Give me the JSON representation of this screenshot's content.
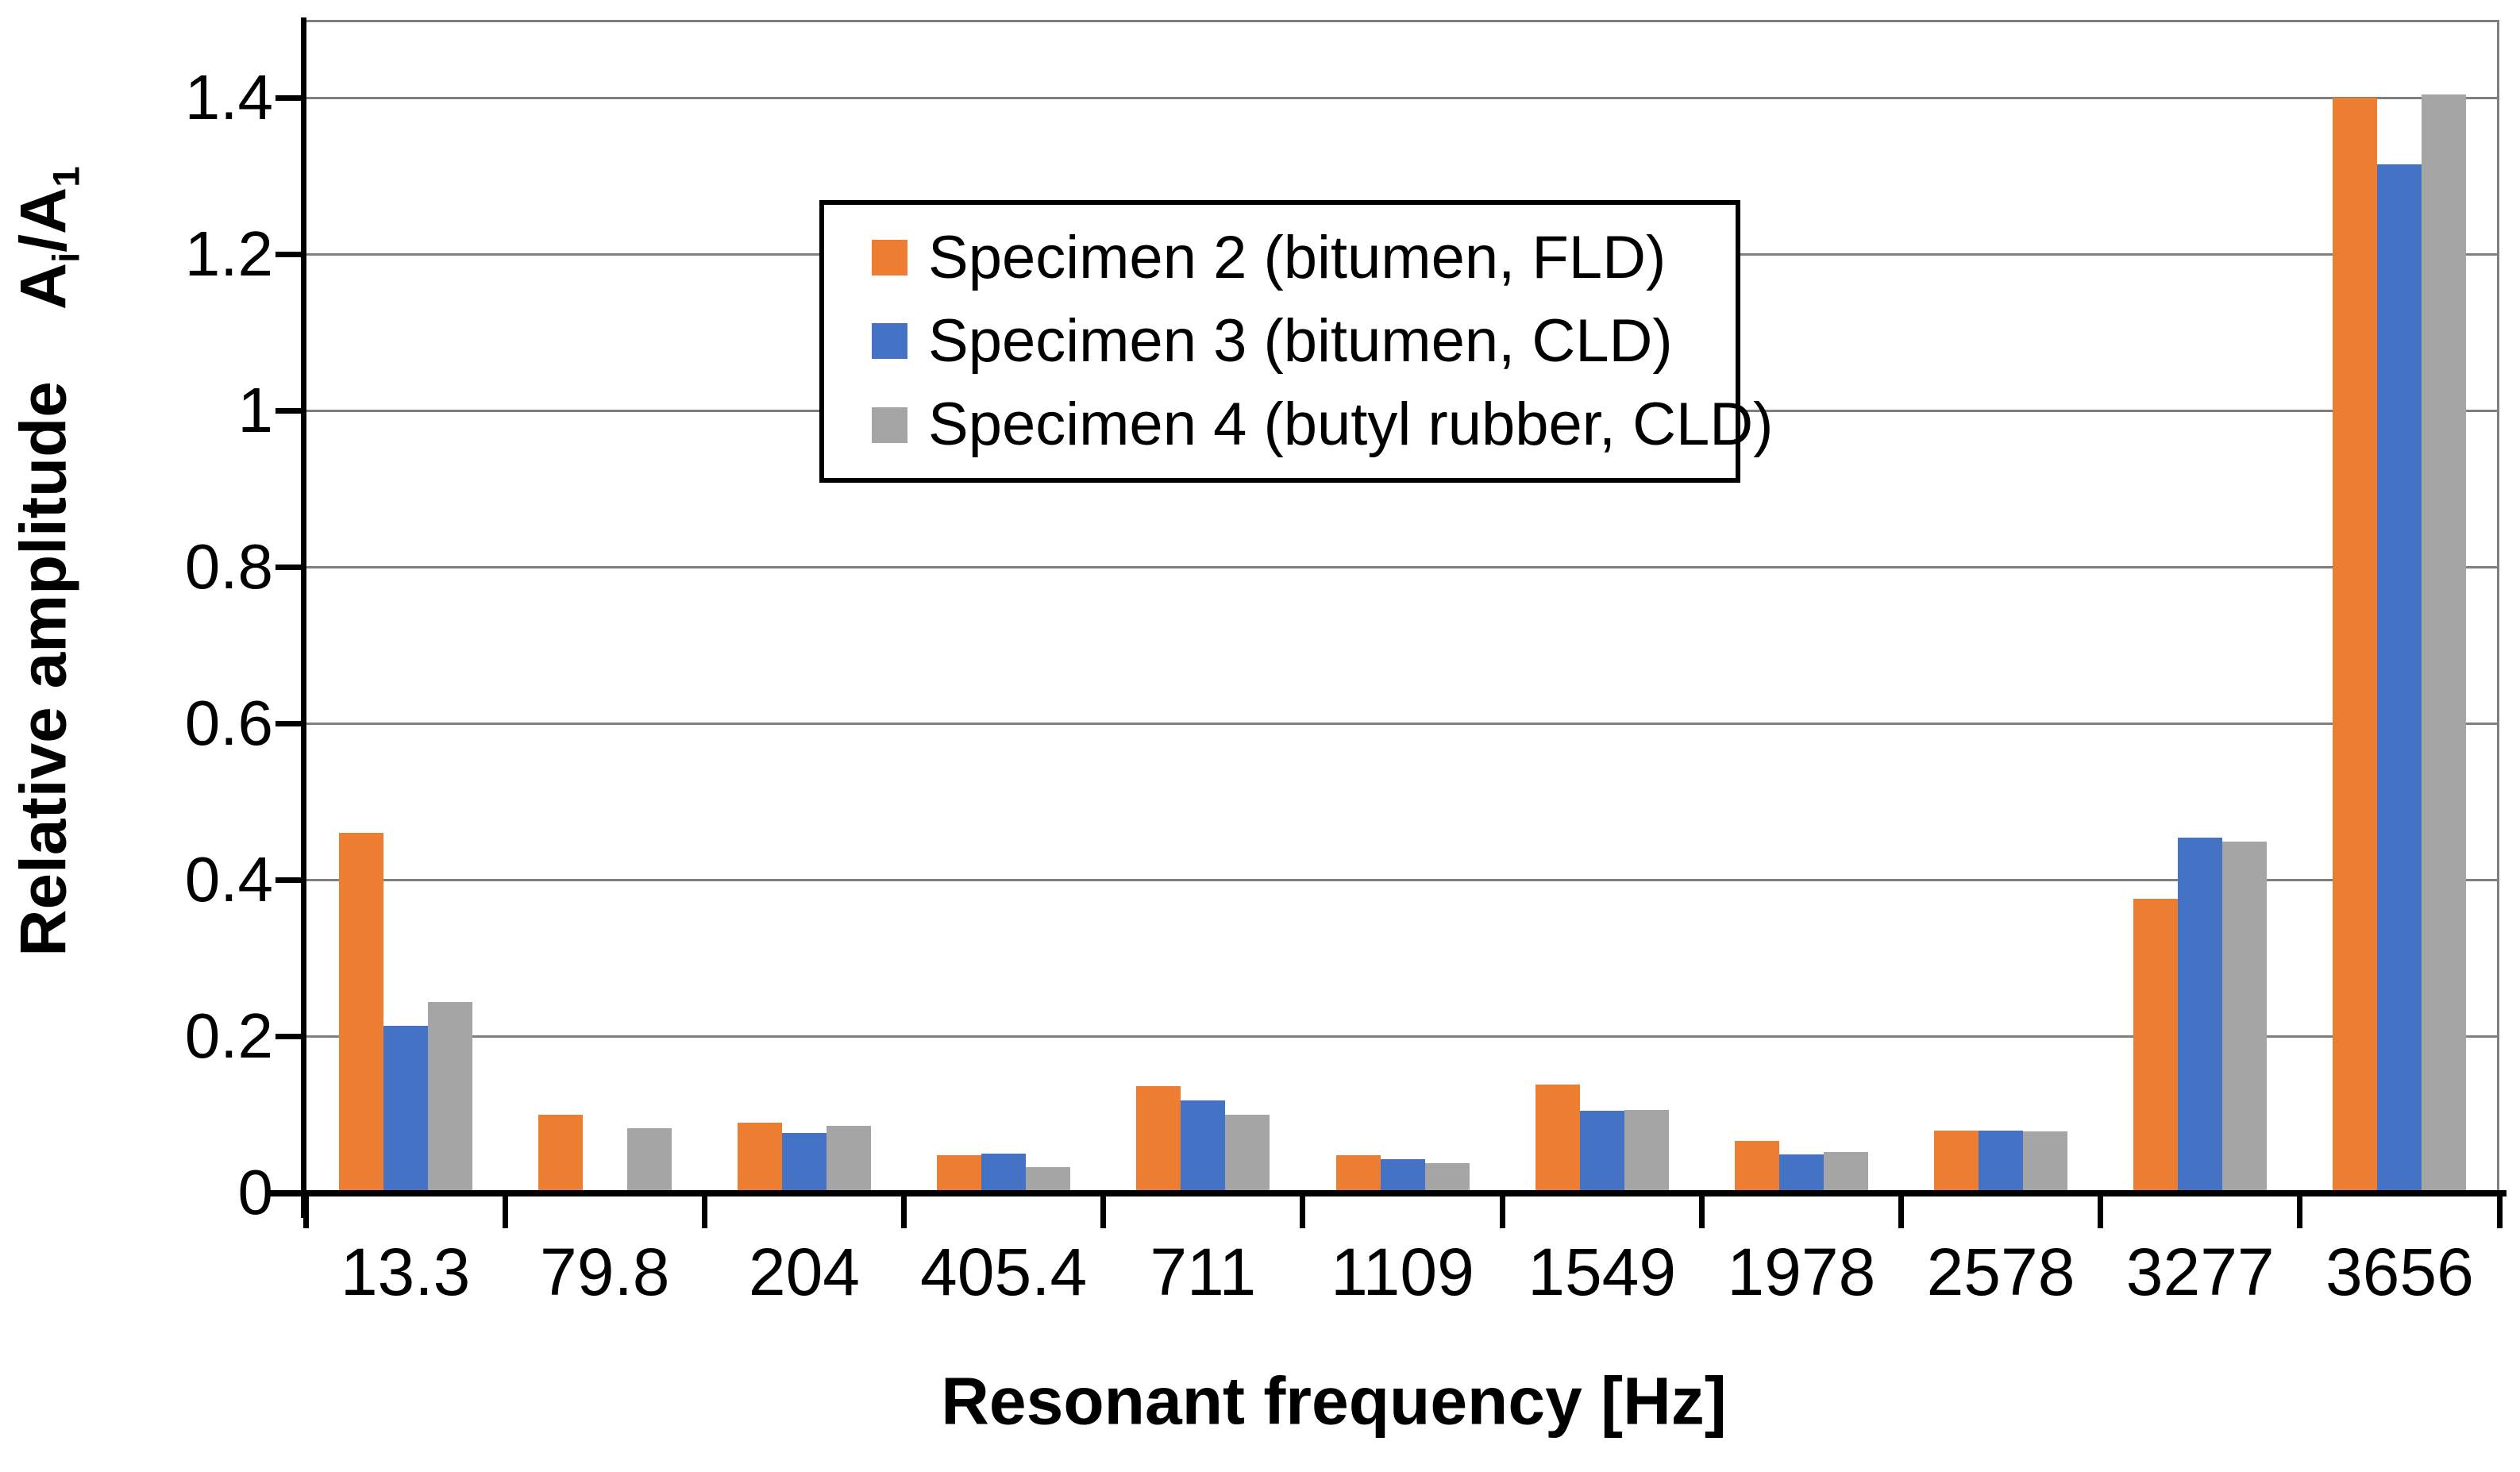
{
  "page": {
    "background": "#FFFFFF"
  },
  "chart_data": {
    "type": "bar",
    "title": "",
    "xlabel": "Resonant frequency [Hz]",
    "ylabel": "Relative amplitude Ai/A1",
    "ylabel_parts": {
      "main": "Relative amplitude",
      "ratio_base": "A",
      "ratio_sub_i": "i",
      "ratio_slash_base": "/A",
      "ratio_sub_1": "1"
    },
    "categories": [
      "13.3",
      "79.8",
      "204",
      "405.4",
      "711",
      "1109",
      "1549",
      "1978",
      "2578",
      "3277",
      "3656"
    ],
    "series": [
      {
        "name": "Specimen 2 (bitumen, FLD)",
        "color": "#ED7D31",
        "values": [
          0.46,
          0.1,
          0.089,
          0.048,
          0.136,
          0.048,
          0.138,
          0.066,
          0.079,
          0.376,
          1.4
        ]
      },
      {
        "name": "Specimen 3 (bitumen, CLD)",
        "color": "#4472C4",
        "values": [
          0.213,
          0,
          0.076,
          0.05,
          0.118,
          0.043,
          0.105,
          0.049,
          0.079,
          0.454,
          1.315
        ]
      },
      {
        "name": "Specimen 4 (butyl rubber, CLD)",
        "color": "#A5A5A5",
        "values": [
          0.244,
          0.082,
          0.085,
          0.033,
          0.1,
          0.038,
          0.106,
          0.052,
          0.078,
          0.449,
          1.405
        ]
      }
    ],
    "ylim": [
      0,
      1.5
    ],
    "ytick_interval": 0.2,
    "yticks": [
      "0",
      "0.2",
      "0.4",
      "0.6",
      "0.8",
      "1",
      "1.2",
      "1.4"
    ],
    "grid": true,
    "gridline_color": "#7F7F7F",
    "axis_color": "#000000",
    "legend_position": "inside upper-center-left"
  }
}
